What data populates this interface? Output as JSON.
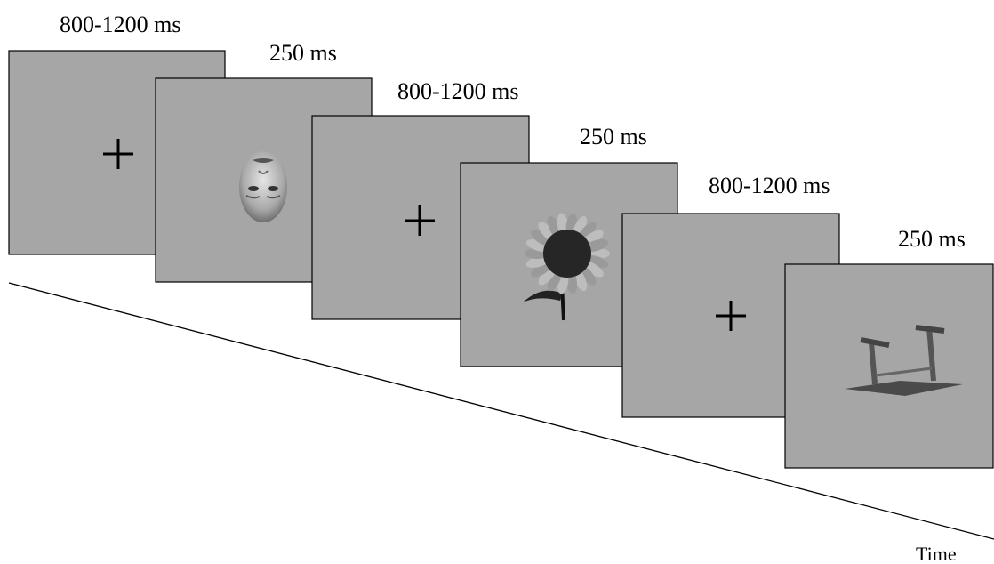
{
  "frames": [
    {
      "duration": "800-1200 ms"
    },
    {
      "duration": "250 ms"
    },
    {
      "duration": "800-1200 ms"
    },
    {
      "duration": "250 ms"
    },
    {
      "duration": "800-1200 ms"
    },
    {
      "duration": "250 ms"
    }
  ],
  "axis_label": "Time"
}
